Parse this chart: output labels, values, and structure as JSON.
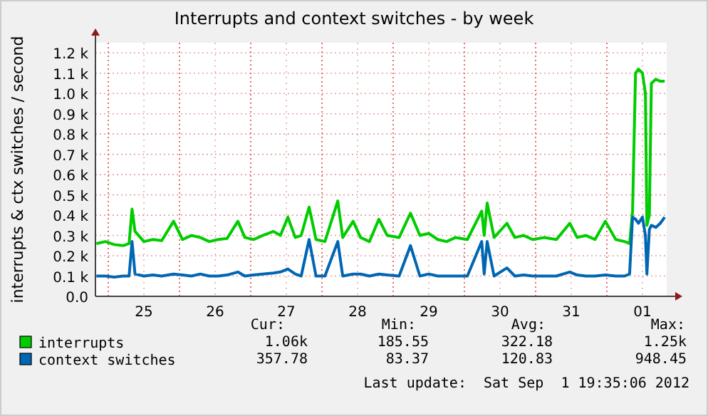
{
  "chart_data": {
    "type": "line",
    "title": "Interrupts and context switches - by week",
    "ylabel": "interrupts & ctx switches / second",
    "x": [
      "2012-08-24T20:00",
      "2012-08-24T23:00",
      "2012-08-25T02:00",
      "2012-08-25T05:00",
      "2012-08-25T07:00",
      "2012-08-25T08:00",
      "2012-08-25T09:00",
      "2012-08-25T12:00",
      "2012-08-25T15:00",
      "2012-08-25T18:00",
      "2012-08-25T22:00",
      "2012-08-26T01:00",
      "2012-08-26T04:00",
      "2012-08-26T07:00",
      "2012-08-26T10:00",
      "2012-08-26T13:00",
      "2012-08-26T16:00",
      "2012-08-26T19:40",
      "2012-08-26T22:00",
      "2012-08-27T01:00",
      "2012-08-27T04:00",
      "2012-08-27T07:40",
      "2012-08-27T10:00",
      "2012-08-27T12:30",
      "2012-08-27T15:00",
      "2012-08-27T17:00",
      "2012-08-27T19:40",
      "2012-08-27T22:00",
      "2012-08-28T01:00",
      "2012-08-28T05:20",
      "2012-08-28T07:00",
      "2012-08-28T10:30",
      "2012-08-28T13:00",
      "2012-08-28T16:00",
      "2012-08-28T19:10",
      "2012-08-28T22:00",
      "2012-08-29T02:00",
      "2012-08-29T05:50",
      "2012-08-29T09:00",
      "2012-08-29T12:00",
      "2012-08-29T15:00",
      "2012-08-29T18:00",
      "2012-08-29T21:00",
      "2012-08-30T01:00",
      "2012-08-30T05:50",
      "2012-08-30T06:40",
      "2012-08-30T07:40",
      "2012-08-30T10:00",
      "2012-08-30T14:20",
      "2012-08-30T17:00",
      "2012-08-30T20:00",
      "2012-08-30T23:00",
      "2012-08-31T03:00",
      "2012-08-31T07:00",
      "2012-08-31T11:30",
      "2012-08-31T14:00",
      "2012-08-31T17:00",
      "2012-08-31T20:00",
      "2012-08-31T23:30",
      "2012-09-01T03:00",
      "2012-09-01T06:00",
      "2012-09-01T07:40",
      "2012-09-01T08:40",
      "2012-09-01T09:40",
      "2012-09-01T10:40",
      "2012-09-01T12:00",
      "2012-09-01T13:00",
      "2012-09-01T13:30",
      "2012-09-01T14:20",
      "2012-09-01T15:00",
      "2012-09-01T16:30",
      "2012-09-01T18:00",
      "2012-09-01T19:30"
    ],
    "series": [
      {
        "name": "interrupts",
        "color": "#00cc00",
        "values": [
          260,
          270,
          255,
          250,
          260,
          430,
          320,
          270,
          280,
          275,
          370,
          280,
          300,
          290,
          270,
          280,
          285,
          370,
          290,
          280,
          300,
          320,
          300,
          390,
          290,
          300,
          440,
          280,
          270,
          470,
          290,
          370,
          290,
          270,
          380,
          300,
          290,
          410,
          300,
          310,
          280,
          270,
          290,
          280,
          420,
          300,
          460,
          290,
          360,
          290,
          300,
          280,
          290,
          280,
          360,
          290,
          300,
          280,
          370,
          280,
          270,
          260,
          420,
          1100,
          1120,
          1100,
          1000,
          350,
          400,
          1050,
          1070,
          1060,
          1060
        ]
      },
      {
        "name": "context switches",
        "color": "#0066b3",
        "values": [
          100,
          100,
          95,
          100,
          100,
          270,
          110,
          100,
          105,
          100,
          110,
          105,
          100,
          110,
          100,
          100,
          105,
          120,
          100,
          105,
          110,
          115,
          120,
          135,
          110,
          100,
          280,
          100,
          100,
          270,
          100,
          110,
          110,
          100,
          110,
          105,
          100,
          250,
          100,
          110,
          100,
          100,
          100,
          100,
          270,
          110,
          270,
          100,
          140,
          100,
          105,
          100,
          100,
          100,
          120,
          105,
          100,
          100,
          105,
          100,
          100,
          110,
          390,
          380,
          360,
          390,
          300,
          110,
          330,
          350,
          340,
          360,
          390
        ]
      }
    ],
    "xlim": [
      "2012-08-24T19:40",
      "2012-09-01T20:10"
    ],
    "xticks": [
      {
        "value": "2012-08-25T00:00",
        "label": null
      },
      {
        "value": "2012-08-25T12:00",
        "label": "25"
      },
      {
        "value": "2012-08-26T00:00",
        "label": null
      },
      {
        "value": "2012-08-26T12:00",
        "label": "26"
      },
      {
        "value": "2012-08-27T00:00",
        "label": null
      },
      {
        "value": "2012-08-27T12:00",
        "label": "27"
      },
      {
        "value": "2012-08-28T00:00",
        "label": null
      },
      {
        "value": "2012-08-28T12:00",
        "label": "28"
      },
      {
        "value": "2012-08-29T00:00",
        "label": null
      },
      {
        "value": "2012-08-29T12:00",
        "label": "29"
      },
      {
        "value": "2012-08-30T00:00",
        "label": null
      },
      {
        "value": "2012-08-30T12:00",
        "label": "30"
      },
      {
        "value": "2012-08-31T00:00",
        "label": null
      },
      {
        "value": "2012-08-31T12:00",
        "label": "31"
      },
      {
        "value": "2012-09-01T00:00",
        "label": null
      },
      {
        "value": "2012-09-01T12:00",
        "label": "01"
      }
    ],
    "ylim": [
      0,
      1250
    ],
    "yticks": [
      {
        "value": 0,
        "label": "0.0"
      },
      {
        "value": 100,
        "label": "0.1 k"
      },
      {
        "value": 200,
        "label": "0.2 k"
      },
      {
        "value": 300,
        "label": "0.3 k"
      },
      {
        "value": 400,
        "label": "0.4 k"
      },
      {
        "value": 500,
        "label": "0.5 k"
      },
      {
        "value": 600,
        "label": "0.6 k"
      },
      {
        "value": 700,
        "label": "0.7 k"
      },
      {
        "value": 800,
        "label": "0.8 k"
      },
      {
        "value": 900,
        "label": "0.9 k"
      },
      {
        "value": 1000,
        "label": "1.0 k"
      },
      {
        "value": 1100,
        "label": "1.1 k"
      },
      {
        "value": 1200,
        "label": "1.2 k"
      }
    ],
    "grid": true,
    "legend": "bottom",
    "annotations": [
      "Cur:",
      "Min:",
      "Avg:",
      "Max:",
      "1.06k",
      "185.55",
      "322.18",
      "1.25k",
      "357.78",
      "83.37",
      "120.83",
      "948.45",
      "Last update:  Sat Sep  1 19:35:06 2012"
    ]
  }
}
